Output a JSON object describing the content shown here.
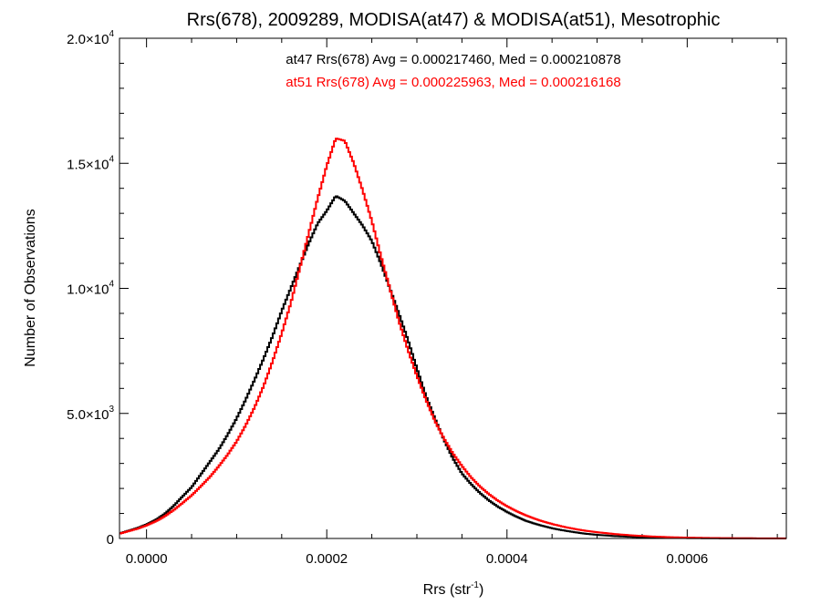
{
  "chart_data": {
    "type": "line",
    "title": "Rrs(678), 2009289, MODISA(at47) & MODISA(at51), Mesotrophic",
    "xlabel": {
      "base": "Rrs (str",
      "sup": "-1",
      "close": ")"
    },
    "ylabel": "Number of Observations",
    "xlim": [
      -3e-05,
      0.00071
    ],
    "ylim": [
      0,
      20000
    ],
    "x_ticks": [
      {
        "value": 0.0,
        "label": "0.0000"
      },
      {
        "value": 0.0002,
        "label": "0.0002"
      },
      {
        "value": 0.0004,
        "label": "0.0004"
      },
      {
        "value": 0.0006,
        "label": "0.0006"
      }
    ],
    "y_ticks": [
      {
        "value": 0,
        "mant": "0",
        "exp": ""
      },
      {
        "value": 5000,
        "mant": "5.0×10",
        "exp": "3"
      },
      {
        "value": 10000,
        "mant": "1.0×10",
        "exp": "4"
      },
      {
        "value": 15000,
        "mant": "1.5×10",
        "exp": "4"
      },
      {
        "value": 20000,
        "mant": "2.0×10",
        "exp": "4"
      }
    ],
    "annotations": [
      {
        "text": "at47 Rrs(678) Avg = 0.000217460, Med = 0.000210878",
        "color": "#000000"
      },
      {
        "text": "at51 Rrs(678) Avg = 0.000225963, Med = 0.000216168",
        "color": "#ff0000"
      }
    ],
    "step": "histogram",
    "series": [
      {
        "name": "at47",
        "color": "#000000",
        "points": [
          [
            -3e-05,
            200
          ],
          [
            -2e-05,
            310
          ],
          [
            -1e-05,
            420
          ],
          [
            0.0,
            560
          ],
          [
            1e-05,
            740
          ],
          [
            2e-05,
            980
          ],
          [
            3e-05,
            1300
          ],
          [
            4e-05,
            1680
          ],
          [
            5e-05,
            2050
          ],
          [
            6e-05,
            2550
          ],
          [
            7e-05,
            3050
          ],
          [
            8e-05,
            3550
          ],
          [
            9e-05,
            4150
          ],
          [
            0.0001,
            4800
          ],
          [
            0.00011,
            5550
          ],
          [
            0.00012,
            6350
          ],
          [
            0.00013,
            7200
          ],
          [
            0.00014,
            8100
          ],
          [
            0.00015,
            9100
          ],
          [
            0.00016,
            10000
          ],
          [
            0.00017,
            10900
          ],
          [
            0.00018,
            11800
          ],
          [
            0.00019,
            12600
          ],
          [
            0.0002,
            13100
          ],
          [
            0.00021,
            13700
          ],
          [
            0.00022,
            13500
          ],
          [
            0.00023,
            13000
          ],
          [
            0.00024,
            12500
          ],
          [
            0.00025,
            11900
          ],
          [
            0.00026,
            11000
          ],
          [
            0.00027,
            10000
          ],
          [
            0.00028,
            9000
          ],
          [
            0.00029,
            7950
          ],
          [
            0.0003,
            6800
          ],
          [
            0.00031,
            5700
          ],
          [
            0.00032,
            4800
          ],
          [
            0.00033,
            3950
          ],
          [
            0.00034,
            3200
          ],
          [
            0.00035,
            2600
          ],
          [
            0.00036,
            2180
          ],
          [
            0.00037,
            1820
          ],
          [
            0.00038,
            1520
          ],
          [
            0.00039,
            1270
          ],
          [
            0.0004,
            1060
          ],
          [
            0.00041,
            880
          ],
          [
            0.00042,
            720
          ],
          [
            0.00043,
            600
          ],
          [
            0.00044,
            500
          ],
          [
            0.00045,
            410
          ],
          [
            0.00046,
            340
          ],
          [
            0.00047,
            280
          ],
          [
            0.00048,
            225
          ],
          [
            0.00049,
            180
          ],
          [
            0.0005,
            145
          ],
          [
            0.00052,
            95
          ],
          [
            0.00054,
            62
          ],
          [
            0.00056,
            40
          ],
          [
            0.00058,
            26
          ],
          [
            0.0006,
            16
          ],
          [
            0.00062,
            10
          ],
          [
            0.00064,
            6
          ],
          [
            0.00066,
            4
          ],
          [
            0.00068,
            2
          ],
          [
            0.0007,
            1
          ]
        ]
      },
      {
        "name": "at51",
        "color": "#ff0000",
        "points": [
          [
            -3e-05,
            190
          ],
          [
            -2e-05,
            290
          ],
          [
            -1e-05,
            390
          ],
          [
            0.0,
            520
          ],
          [
            1e-05,
            680
          ],
          [
            2e-05,
            880
          ],
          [
            3e-05,
            1130
          ],
          [
            4e-05,
            1420
          ],
          [
            5e-05,
            1720
          ],
          [
            6e-05,
            2080
          ],
          [
            7e-05,
            2450
          ],
          [
            8e-05,
            2880
          ],
          [
            9e-05,
            3350
          ],
          [
            0.0001,
            3880
          ],
          [
            0.00011,
            4520
          ],
          [
            0.00012,
            5250
          ],
          [
            0.00013,
            6100
          ],
          [
            0.00014,
            7100
          ],
          [
            0.00015,
            8200
          ],
          [
            0.00016,
            9400
          ],
          [
            0.00017,
            10800
          ],
          [
            0.00018,
            12200
          ],
          [
            0.00019,
            13600
          ],
          [
            0.0002,
            14900
          ],
          [
            0.00021,
            16000
          ],
          [
            0.00022,
            15900
          ],
          [
            0.00023,
            15000
          ],
          [
            0.00024,
            13900
          ],
          [
            0.00025,
            12700
          ],
          [
            0.00026,
            11300
          ],
          [
            0.00027,
            10000
          ],
          [
            0.00028,
            8700
          ],
          [
            0.00029,
            7550
          ],
          [
            0.0003,
            6500
          ],
          [
            0.00031,
            5550
          ],
          [
            0.00032,
            4700
          ],
          [
            0.00033,
            4000
          ],
          [
            0.00034,
            3400
          ],
          [
            0.00035,
            2900
          ],
          [
            0.00036,
            2450
          ],
          [
            0.00037,
            2080
          ],
          [
            0.00038,
            1770
          ],
          [
            0.00039,
            1510
          ],
          [
            0.0004,
            1290
          ],
          [
            0.00041,
            1100
          ],
          [
            0.00042,
            940
          ],
          [
            0.00043,
            800
          ],
          [
            0.00044,
            680
          ],
          [
            0.00045,
            580
          ],
          [
            0.00046,
            490
          ],
          [
            0.00047,
            415
          ],
          [
            0.00048,
            350
          ],
          [
            0.00049,
            295
          ],
          [
            0.0005,
            250
          ],
          [
            0.00052,
            175
          ],
          [
            0.00054,
            120
          ],
          [
            0.00056,
            80
          ],
          [
            0.00058,
            52
          ],
          [
            0.0006,
            34
          ],
          [
            0.00062,
            22
          ],
          [
            0.00064,
            14
          ],
          [
            0.00066,
            9
          ],
          [
            0.00068,
            5
          ],
          [
            0.0007,
            3
          ]
        ]
      }
    ]
  }
}
